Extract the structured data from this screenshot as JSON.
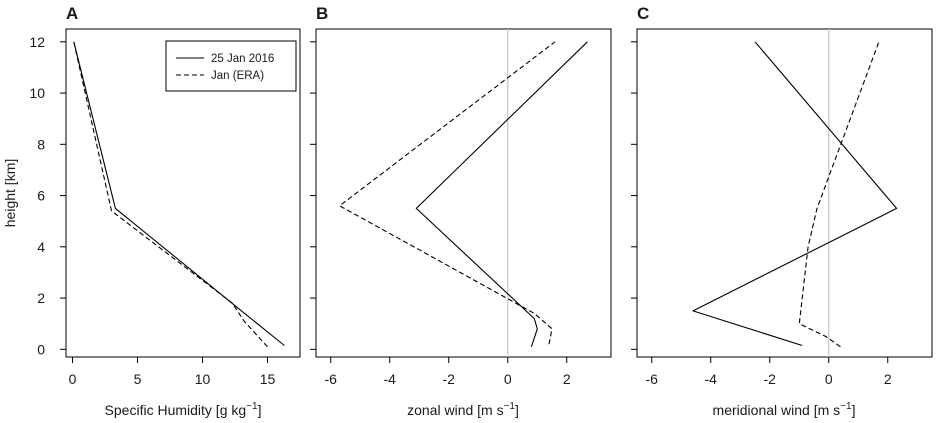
{
  "chart_data": [
    {
      "type": "line",
      "panel_label": "A",
      "xlabel": "Specific Humidity [g kg",
      "xlabel_sup": "−1",
      "xlabel_end": "]",
      "ylabel": "height [km]",
      "xlim": [
        -0.5,
        17.5
      ],
      "ylim": [
        -0.3,
        12.5
      ],
      "xticks": [
        0,
        5,
        10,
        15
      ],
      "yticks": [
        0,
        2,
        4,
        6,
        8,
        10,
        12
      ],
      "legend": {
        "position": "top-right"
      },
      "series": [
        {
          "name": "25 Jan 2016",
          "dash": "solid",
          "color": "#000000",
          "points": [
            [
              16.3,
              0.15
            ],
            [
              13.0,
              1.5
            ],
            [
              3.3,
              5.5
            ],
            [
              0.1,
              12.0
            ]
          ]
        },
        {
          "name": "Jan (ERA)",
          "dash": "dashed",
          "color": "#000000",
          "points": [
            [
              15.0,
              0.1
            ],
            [
              13.2,
              1.1
            ],
            [
              12.3,
              1.8
            ],
            [
              3.0,
              5.4
            ],
            [
              0.1,
              12.0
            ]
          ]
        }
      ]
    },
    {
      "type": "line",
      "panel_label": "B",
      "xlabel": "zonal wind [m s",
      "xlabel_sup": "−1",
      "xlabel_end": "]",
      "xlim": [
        -6.5,
        3.5
      ],
      "ylim": [
        -0.3,
        12.5
      ],
      "xticks": [
        -6,
        -4,
        -2,
        0,
        2
      ],
      "yticks": [
        0,
        2,
        4,
        6,
        8,
        10,
        12
      ],
      "zero_line": true,
      "series": [
        {
          "name": "25 Jan 2016",
          "dash": "solid",
          "color": "#000000",
          "points": [
            [
              0.8,
              0.1
            ],
            [
              1.0,
              0.8
            ],
            [
              0.9,
              1.2
            ],
            [
              -3.1,
              5.5
            ],
            [
              2.7,
              12.0
            ]
          ]
        },
        {
          "name": "Jan (ERA)",
          "dash": "dashed",
          "color": "#000000",
          "points": [
            [
              1.4,
              0.2
            ],
            [
              1.5,
              0.8
            ],
            [
              0.9,
              1.4
            ],
            [
              -5.7,
              5.6
            ],
            [
              1.6,
              12.0
            ]
          ]
        }
      ]
    },
    {
      "type": "line",
      "panel_label": "C",
      "xlabel": "meridional wind [m s",
      "xlabel_sup": "−1",
      "xlabel_end": "]",
      "xlim": [
        -6.5,
        3.5
      ],
      "ylim": [
        -0.3,
        12.5
      ],
      "xticks": [
        -6,
        -4,
        -2,
        0,
        2
      ],
      "yticks": [
        0,
        2,
        4,
        6,
        8,
        10,
        12
      ],
      "zero_line": true,
      "series": [
        {
          "name": "25 Jan 2016",
          "dash": "solid",
          "color": "#000000",
          "points": [
            [
              -0.9,
              0.15
            ],
            [
              -4.6,
              1.5
            ],
            [
              2.3,
              5.5
            ],
            [
              -2.5,
              12.0
            ]
          ]
        },
        {
          "name": "Jan (ERA)",
          "dash": "dashed",
          "color": "#000000",
          "points": [
            [
              0.4,
              0.1
            ],
            [
              -0.1,
              0.5
            ],
            [
              -1.0,
              1.0
            ],
            [
              -0.7,
              4.0
            ],
            [
              -0.4,
              5.5
            ],
            [
              1.7,
              12.0
            ]
          ]
        }
      ]
    }
  ]
}
